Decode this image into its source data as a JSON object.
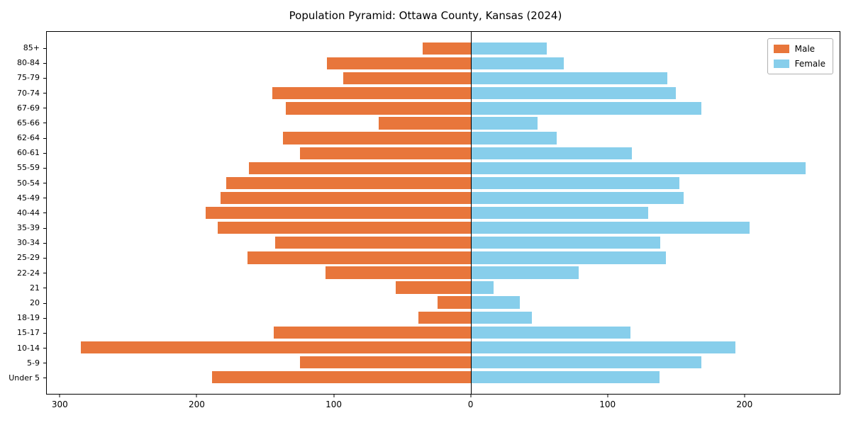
{
  "chart_data": {
    "type": "bar",
    "orientation": "horizontal",
    "title": "Population Pyramid: Ottawa County, Kansas (2024)",
    "xlabel": "",
    "ylabel": "",
    "grid": false,
    "xlim": [
      -310,
      270
    ],
    "categories_top_to_bottom": [
      "85+",
      "80-84",
      "75-79",
      "70-74",
      "67-69",
      "65-66",
      "62-64",
      "60-61",
      "55-59",
      "50-54",
      "45-49",
      "40-44",
      "35-39",
      "30-34",
      "25-29",
      "22-24",
      "21",
      "20",
      "18-19",
      "15-17",
      "10-14",
      "5-9",
      "Under 5"
    ],
    "series": [
      {
        "name": "Male",
        "side": "left",
        "color": "#e8763b",
        "values": [
          35,
          105,
          93,
          145,
          135,
          67,
          137,
          125,
          162,
          179,
          183,
          194,
          185,
          143,
          163,
          106,
          55,
          24,
          38,
          144,
          285,
          125,
          189
        ]
      },
      {
        "name": "Female",
        "side": "right",
        "color": "#87ceeb",
        "values": [
          56,
          68,
          144,
          150,
          169,
          49,
          63,
          118,
          245,
          153,
          156,
          130,
          204,
          139,
          143,
          79,
          17,
          36,
          45,
          117,
          194,
          169,
          138
        ]
      }
    ],
    "x_ticks": [
      {
        "value": -300,
        "label": "300"
      },
      {
        "value": -200,
        "label": "200"
      },
      {
        "value": -100,
        "label": "100"
      },
      {
        "value": 0,
        "label": "0"
      },
      {
        "value": 100,
        "label": "100"
      },
      {
        "value": 200,
        "label": "200"
      }
    ],
    "legend": {
      "position": "top-right",
      "entries": [
        {
          "label": "Male",
          "color": "#e8763b"
        },
        {
          "label": "Female",
          "color": "#87ceeb"
        }
      ]
    }
  }
}
